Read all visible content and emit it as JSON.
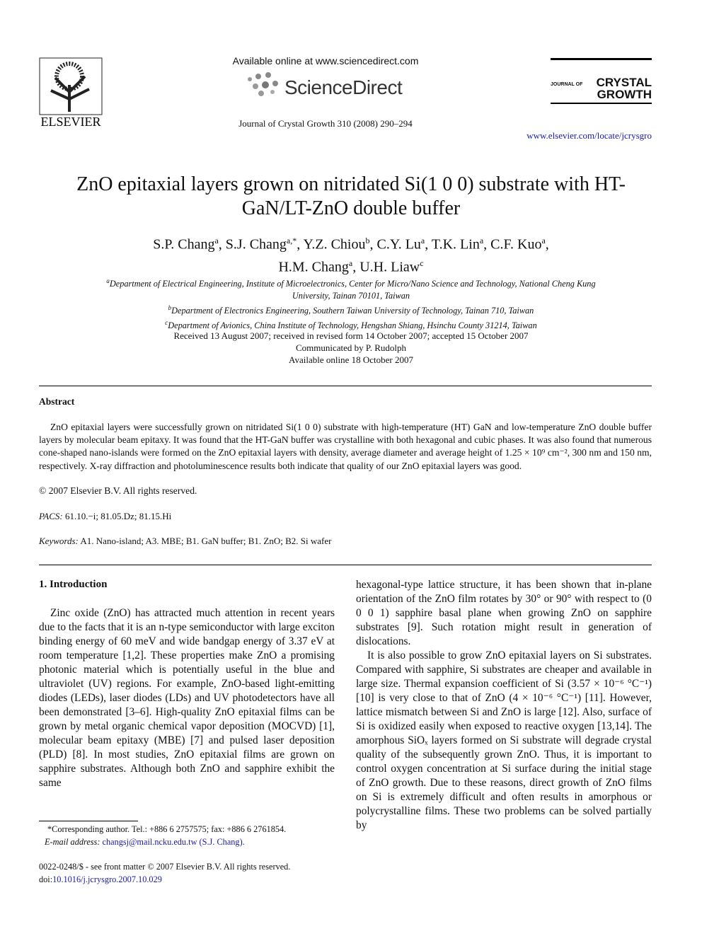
{
  "header": {
    "publisher": "ELSEVIER",
    "available": "Available online at www.sciencedirect.com",
    "brand": "ScienceDirect",
    "citation": "Journal of Crystal Growth 310 (2008) 290–294",
    "logo_small": "JOURNAL OF",
    "logo_top": "CRYSTAL",
    "logo_bottom": "GROWTH",
    "url": "www.elsevier.com/locate/jcrysgro"
  },
  "title": "ZnO epitaxial layers grown on nitridated Si(1 0 0) substrate with HT-GaN/LT-ZnO double buffer",
  "authors": [
    [
      "S.P. Chang",
      "a",
      ", S.J. Chang",
      "a,*",
      ", Y.Z. Chiou",
      "b",
      ", C.Y. Lu",
      "a",
      ", T.K. Lin",
      "a",
      ", C.F. Kuo",
      "a",
      ","
    ],
    [
      "H.M. Chang",
      "a",
      ", U.H. Liaw",
      "c"
    ]
  ],
  "affiliations": [
    {
      "mark": "a",
      "text": "Department of Electrical Engineering, Institute of Microelectronics, Center for Micro/Nano Science and Technology, National Cheng Kung University, Tainan 70101, Taiwan"
    },
    {
      "mark": "b",
      "text": "Department of Electronics Engineering, Southern Taiwan University of Technology, Tainan 710, Taiwan"
    },
    {
      "mark": "c",
      "text": "Department of Avionics, China Institute of Technology, Hengshan Shiang, Hsinchu County 31214, Taiwan"
    }
  ],
  "dates": [
    "Received 13 August 2007; received in revised form 14 October 2007; accepted 15 October 2007",
    "Communicated by P. Rudolph",
    "Available online 18 October 2007"
  ],
  "abstract": {
    "heading": "Abstract",
    "text": "ZnO epitaxial layers were successfully grown on nitridated Si(1 0 0) substrate with high-temperature (HT) GaN and low-temperature ZnO double buffer layers by molecular beam epitaxy. It was found that the HT-GaN buffer was crystalline with both hexagonal and cubic phases. It was also found that numerous cone-shaped nano-islands were formed on the ZnO epitaxial layers with density, average diameter and average height of 1.25 × 10⁹ cm⁻², 300 nm and 150 nm, respectively. X-ray diffraction and photoluminescence results both indicate that quality of our ZnO epitaxial layers was good.",
    "copyright": "© 2007 Elsevier B.V. All rights reserved."
  },
  "pacs": {
    "label": "PACS:",
    "text": "61.10.−i; 81.05.Dz; 81.15.Hi"
  },
  "keywords": {
    "label": "Keywords:",
    "text": "A1. Nano-island; A3. MBE; B1. GaN buffer; B1. ZnO; B2. Si wafer"
  },
  "section": {
    "heading": "1. Introduction",
    "left": "Zinc oxide (ZnO) has attracted much attention in recent years due to the facts that it is an n-type semiconductor with large exciton binding energy of 60 meV and wide bandgap energy of 3.37 eV at room temperature [1,2]. These properties make ZnO a promising photonic material which is potentially useful in the blue and ultraviolet (UV) regions. For example, ZnO-based light-emitting diodes (LEDs), laser diodes (LDs) and UV photodetectors have all been demonstrated [3–6]. High-quality ZnO epitaxial films can be grown by metal organic chemical vapor deposition (MOCVD) [1], molecular beam epitaxy (MBE) [7] and pulsed laser deposition (PLD) [8]. In most studies, ZnO epitaxial films are grown on sapphire substrates. Although both ZnO and sapphire exhibit the same",
    "right": [
      "hexagonal-type lattice structure, it has been shown that in-plane orientation of the ZnO film rotates by 30° or 90° with respect to (0 0 0 1) sapphire basal plane when growing ZnO on sapphire substrates [9]. Such rotation might result in generation of dislocations.",
      "It is also possible to grow ZnO epitaxial layers on Si substrates. Compared with sapphire, Si substrates are cheaper and available in large size. Thermal expansion coefficient of Si (3.57 × 10⁻⁶ °C⁻¹) [10] is very close to that of ZnO (4 × 10⁻⁶ °C⁻¹) [11]. However, lattice mismatch between Si and ZnO is large [12]. Also, surface of Si is oxidized easily when exposed to reactive oxygen [13,14]. The amorphous SiOₓ layers formed on Si substrate will degrade crystal quality of the subsequently grown ZnO. Thus, it is important to control oxygen concentration at Si surface during the initial stage of ZnO growth. Due to these reasons, direct growth of ZnO films on Si is extremely difficult and often results in amorphous or polycrystalline films. These two problems can be solved partially by"
    ]
  },
  "footnote": {
    "corresponding": "*Corresponding author. Tel.: +886 6 2757575; fax: +886 6 2761854.",
    "email_label": "E-mail address:",
    "email": "changsj@mail.ncku.edu.tw (S.J. Chang)."
  },
  "footer": {
    "issn": "0022-0248/$ - see front matter © 2007 Elsevier B.V. All rights reserved.",
    "doi_label": "doi:",
    "doi": "10.1016/j.jcrysgro.2007.10.029"
  }
}
